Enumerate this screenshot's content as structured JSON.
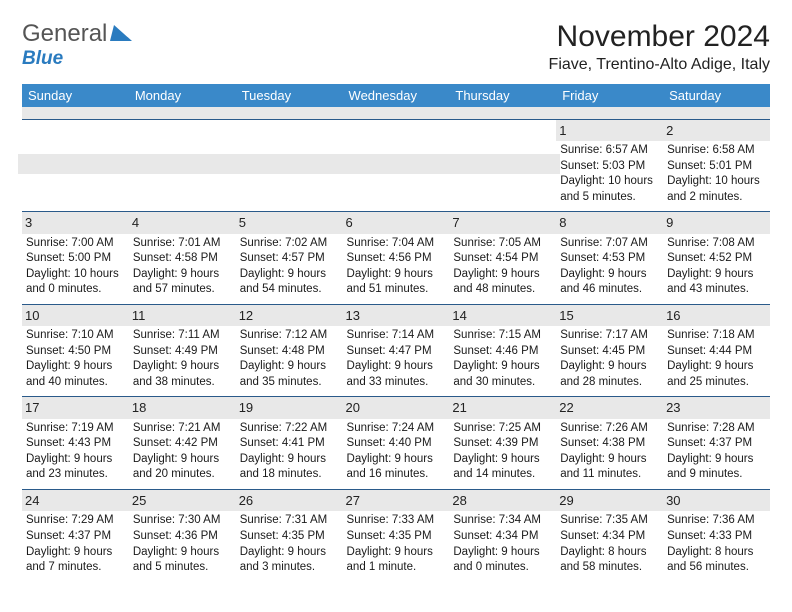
{
  "logo": {
    "main": "General",
    "sub": "Blue"
  },
  "title": "November 2024",
  "location": "Fiave, Trentino-Alto Adige, Italy",
  "colors": {
    "header_bg": "#3a89c9",
    "header_text": "#ffffff",
    "daynum_bg": "#e8e8e8",
    "border": "#2a5a8a",
    "logo_main": "#555555",
    "logo_sub": "#2a7bbf"
  },
  "weekdays": [
    "Sunday",
    "Monday",
    "Tuesday",
    "Wednesday",
    "Thursday",
    "Friday",
    "Saturday"
  ],
  "weeks": [
    [
      null,
      null,
      null,
      null,
      null,
      {
        "n": "1",
        "sr": "Sunrise: 6:57 AM",
        "ss": "Sunset: 5:03 PM",
        "dl": "Daylight: 10 hours and 5 minutes."
      },
      {
        "n": "2",
        "sr": "Sunrise: 6:58 AM",
        "ss": "Sunset: 5:01 PM",
        "dl": "Daylight: 10 hours and 2 minutes."
      }
    ],
    [
      {
        "n": "3",
        "sr": "Sunrise: 7:00 AM",
        "ss": "Sunset: 5:00 PM",
        "dl": "Daylight: 10 hours and 0 minutes."
      },
      {
        "n": "4",
        "sr": "Sunrise: 7:01 AM",
        "ss": "Sunset: 4:58 PM",
        "dl": "Daylight: 9 hours and 57 minutes."
      },
      {
        "n": "5",
        "sr": "Sunrise: 7:02 AM",
        "ss": "Sunset: 4:57 PM",
        "dl": "Daylight: 9 hours and 54 minutes."
      },
      {
        "n": "6",
        "sr": "Sunrise: 7:04 AM",
        "ss": "Sunset: 4:56 PM",
        "dl": "Daylight: 9 hours and 51 minutes."
      },
      {
        "n": "7",
        "sr": "Sunrise: 7:05 AM",
        "ss": "Sunset: 4:54 PM",
        "dl": "Daylight: 9 hours and 48 minutes."
      },
      {
        "n": "8",
        "sr": "Sunrise: 7:07 AM",
        "ss": "Sunset: 4:53 PM",
        "dl": "Daylight: 9 hours and 46 minutes."
      },
      {
        "n": "9",
        "sr": "Sunrise: 7:08 AM",
        "ss": "Sunset: 4:52 PM",
        "dl": "Daylight: 9 hours and 43 minutes."
      }
    ],
    [
      {
        "n": "10",
        "sr": "Sunrise: 7:10 AM",
        "ss": "Sunset: 4:50 PM",
        "dl": "Daylight: 9 hours and 40 minutes."
      },
      {
        "n": "11",
        "sr": "Sunrise: 7:11 AM",
        "ss": "Sunset: 4:49 PM",
        "dl": "Daylight: 9 hours and 38 minutes."
      },
      {
        "n": "12",
        "sr": "Sunrise: 7:12 AM",
        "ss": "Sunset: 4:48 PM",
        "dl": "Daylight: 9 hours and 35 minutes."
      },
      {
        "n": "13",
        "sr": "Sunrise: 7:14 AM",
        "ss": "Sunset: 4:47 PM",
        "dl": "Daylight: 9 hours and 33 minutes."
      },
      {
        "n": "14",
        "sr": "Sunrise: 7:15 AM",
        "ss": "Sunset: 4:46 PM",
        "dl": "Daylight: 9 hours and 30 minutes."
      },
      {
        "n": "15",
        "sr": "Sunrise: 7:17 AM",
        "ss": "Sunset: 4:45 PM",
        "dl": "Daylight: 9 hours and 28 minutes."
      },
      {
        "n": "16",
        "sr": "Sunrise: 7:18 AM",
        "ss": "Sunset: 4:44 PM",
        "dl": "Daylight: 9 hours and 25 minutes."
      }
    ],
    [
      {
        "n": "17",
        "sr": "Sunrise: 7:19 AM",
        "ss": "Sunset: 4:43 PM",
        "dl": "Daylight: 9 hours and 23 minutes."
      },
      {
        "n": "18",
        "sr": "Sunrise: 7:21 AM",
        "ss": "Sunset: 4:42 PM",
        "dl": "Daylight: 9 hours and 20 minutes."
      },
      {
        "n": "19",
        "sr": "Sunrise: 7:22 AM",
        "ss": "Sunset: 4:41 PM",
        "dl": "Daylight: 9 hours and 18 minutes."
      },
      {
        "n": "20",
        "sr": "Sunrise: 7:24 AM",
        "ss": "Sunset: 4:40 PM",
        "dl": "Daylight: 9 hours and 16 minutes."
      },
      {
        "n": "21",
        "sr": "Sunrise: 7:25 AM",
        "ss": "Sunset: 4:39 PM",
        "dl": "Daylight: 9 hours and 14 minutes."
      },
      {
        "n": "22",
        "sr": "Sunrise: 7:26 AM",
        "ss": "Sunset: 4:38 PM",
        "dl": "Daylight: 9 hours and 11 minutes."
      },
      {
        "n": "23",
        "sr": "Sunrise: 7:28 AM",
        "ss": "Sunset: 4:37 PM",
        "dl": "Daylight: 9 hours and 9 minutes."
      }
    ],
    [
      {
        "n": "24",
        "sr": "Sunrise: 7:29 AM",
        "ss": "Sunset: 4:37 PM",
        "dl": "Daylight: 9 hours and 7 minutes."
      },
      {
        "n": "25",
        "sr": "Sunrise: 7:30 AM",
        "ss": "Sunset: 4:36 PM",
        "dl": "Daylight: 9 hours and 5 minutes."
      },
      {
        "n": "26",
        "sr": "Sunrise: 7:31 AM",
        "ss": "Sunset: 4:35 PM",
        "dl": "Daylight: 9 hours and 3 minutes."
      },
      {
        "n": "27",
        "sr": "Sunrise: 7:33 AM",
        "ss": "Sunset: 4:35 PM",
        "dl": "Daylight: 9 hours and 1 minute."
      },
      {
        "n": "28",
        "sr": "Sunrise: 7:34 AM",
        "ss": "Sunset: 4:34 PM",
        "dl": "Daylight: 9 hours and 0 minutes."
      },
      {
        "n": "29",
        "sr": "Sunrise: 7:35 AM",
        "ss": "Sunset: 4:34 PM",
        "dl": "Daylight: 8 hours and 58 minutes."
      },
      {
        "n": "30",
        "sr": "Sunrise: 7:36 AM",
        "ss": "Sunset: 4:33 PM",
        "dl": "Daylight: 8 hours and 56 minutes."
      }
    ]
  ]
}
